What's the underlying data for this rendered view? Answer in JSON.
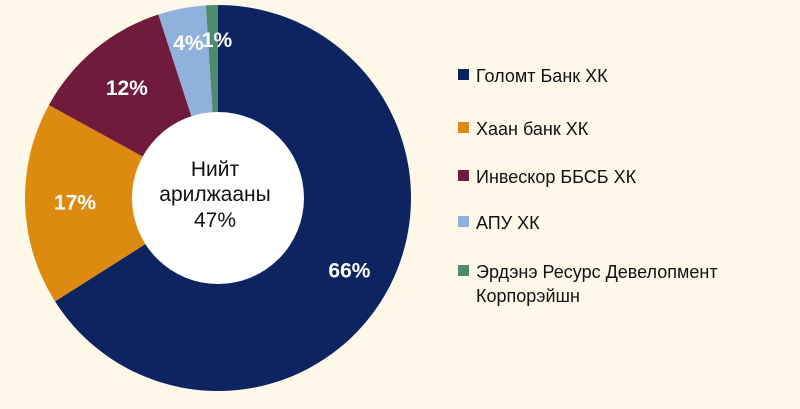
{
  "chart_data": {
    "type": "pie",
    "donut": true,
    "center_label": [
      "Нийт",
      "арилжааны",
      "47%"
    ],
    "slices": [
      {
        "name": "Голомт Банк ХК",
        "value": 66,
        "label": "66%",
        "color": "#0e2461"
      },
      {
        "name": "Хаан банк ХК",
        "value": 17,
        "label": "17%",
        "color": "#dd8a10"
      },
      {
        "name": "Инвескор ББСБ ХК",
        "value": 12,
        "label": "12%",
        "color": "#701a3c"
      },
      {
        "name": "АПУ ХК",
        "value": 4,
        "label": "4%",
        "color": "#8fb2dc"
      },
      {
        "name": "Эрдэнэ Ресурс Девелопмент Корпорэйшн",
        "value": 1,
        "label": "1%",
        "color": "#4e8a6c"
      }
    ],
    "legend_position": "right"
  }
}
